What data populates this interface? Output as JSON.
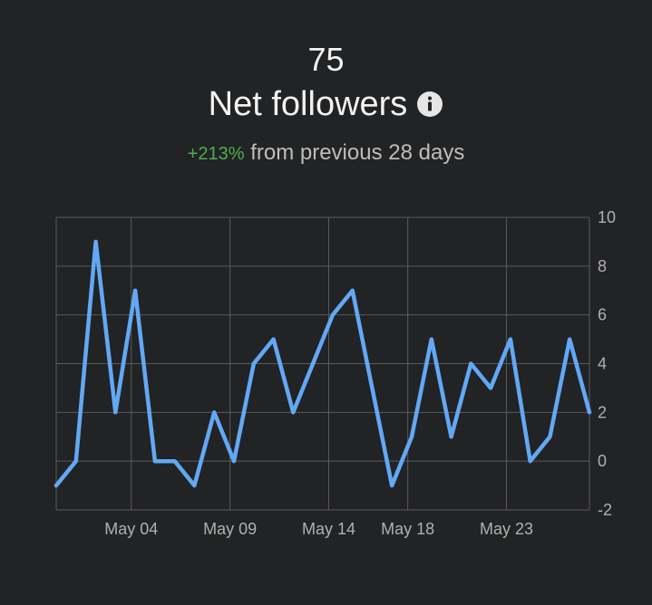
{
  "header": {
    "total": "75",
    "title": "Net followers",
    "info_icon": "info-icon",
    "change": "+213%",
    "comparison": "from previous 28 days"
  },
  "colors": {
    "background": "#222325",
    "line": "#62a8f5",
    "positive": "#4caf50",
    "grid": "#5a5a5a"
  },
  "chart_data": {
    "type": "line",
    "title": "Net followers",
    "xlabel": "",
    "ylabel": "",
    "x_tick_labels": [
      "May 04",
      "May 09",
      "May 14",
      "May 18",
      "May 23"
    ],
    "y_tick_labels": [
      "-2",
      "0",
      "2",
      "4",
      "6",
      "8",
      "10"
    ],
    "ylim": [
      -2,
      10
    ],
    "grid": true,
    "y_axis_position": "right",
    "series": [
      {
        "values": [
          -1,
          0,
          9,
          2,
          7,
          0,
          0,
          -1,
          2,
          0,
          4,
          5,
          2,
          4,
          6,
          7,
          3,
          -1,
          1,
          5,
          1,
          4,
          3,
          5,
          0,
          1,
          5,
          2
        ]
      }
    ]
  }
}
